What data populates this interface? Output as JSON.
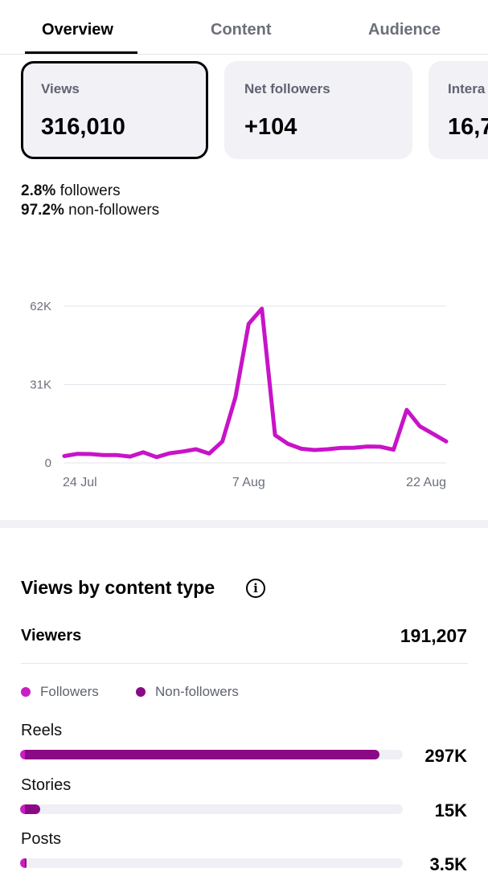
{
  "tabs": [
    {
      "label": "Overview",
      "active": true
    },
    {
      "label": "Content",
      "active": false
    },
    {
      "label": "Audience",
      "active": false
    }
  ],
  "cards": [
    {
      "label": "Views",
      "value": "316,010",
      "selected": true
    },
    {
      "label": "Net followers",
      "value": "+104",
      "selected": false
    },
    {
      "label": "Intera",
      "value": "16,7",
      "selected": false
    }
  ],
  "audience_split": {
    "followers_pct": "2.8%",
    "followers_text": "followers",
    "nonfollowers_pct": "97.2%",
    "nonfollowers_text": "non-followers"
  },
  "chart_data": {
    "type": "line",
    "x_tick_labels": [
      "24 Jul",
      "7 Aug",
      "22 Aug"
    ],
    "y_tick_labels": [
      "0",
      "31K",
      "62K"
    ],
    "ylim": [
      0,
      62000
    ],
    "grid": true,
    "color": "#c813c8",
    "series": [
      {
        "values": [
          2700,
          3600,
          3500,
          3100,
          3100,
          2500,
          4200,
          2300,
          3800,
          4500,
          5400,
          3700,
          8500,
          26000,
          55000,
          61000,
          11000,
          7500,
          5600,
          5100,
          5400,
          5900,
          6000,
          6500,
          6400,
          5200,
          21000,
          14500,
          11500,
          8500
        ]
      }
    ]
  },
  "views_by_type": {
    "title": "Views by content type",
    "info_icon": "info-icon",
    "viewers_label": "Viewers",
    "viewers_value": "191,207",
    "legend": [
      {
        "label": "Followers",
        "color": "#c91ec5"
      },
      {
        "label": "Non-followers",
        "color": "#8a0a85"
      }
    ],
    "rows": [
      {
        "label": "Reels",
        "value": "297K",
        "followers_fraction": 0.012,
        "nonfollowers_fraction": 0.928
      },
      {
        "label": "Stories",
        "value": "15K",
        "followers_fraction": 0.012,
        "nonfollowers_fraction": 0.04
      },
      {
        "label": "Posts",
        "value": "3.5K",
        "followers_fraction": 0.012,
        "nonfollowers_fraction": 0.004
      }
    ]
  }
}
